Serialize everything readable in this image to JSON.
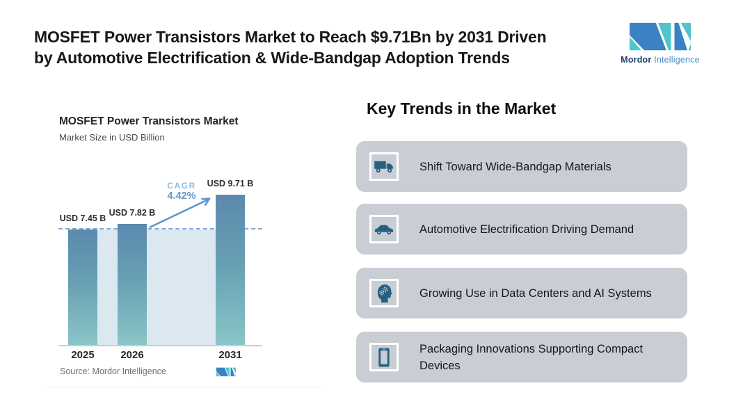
{
  "header": {
    "title_line1": "MOSFET Power Transistors Market to Reach $9.71Bn by 2031 Driven",
    "title_line2": "by Automotive Electrification & Wide-Bandgap Adoption Trends",
    "logo": {
      "brand_bold": "Mordor",
      "brand_light": "Intelligence",
      "blue": "#3b82c4",
      "teal": "#4ec5ca"
    }
  },
  "chart": {
    "title": "MOSFET Power Transistors Market",
    "subtitle": "Market Size in USD Billion",
    "cagr_label": "CAGR",
    "cagr_value": "4.42%",
    "source_label": "Source: Mordor Intelligence"
  },
  "chart_data": {
    "type": "bar",
    "title": "MOSFET Power Transistors Market",
    "subtitle": "Market Size in USD Billion",
    "categories": [
      "2025",
      "2026",
      "2031"
    ],
    "values": [
      7.45,
      7.82,
      9.71
    ],
    "labels": [
      "USD 7.45 B",
      "USD 7.82 B",
      "USD 9.71 B"
    ],
    "cagr_percent": 4.42,
    "ylim": [
      0,
      10
    ],
    "unit": "USD Billion",
    "annotations": [
      "CAGR 4.42% arrow from 2026 to 2031",
      "dashed reference line at 2025 level"
    ],
    "legend": "none",
    "grid": false,
    "bar_color_gradient": [
      "#5b89ae",
      "#8ac5c8"
    ],
    "area_fill_color": "#dce8f0",
    "source": "Source: Mordor Intelligence"
  },
  "trends": {
    "heading": "Key Trends in the Market",
    "card_bg": "#c9ced5",
    "icon_color": "#26607f",
    "items": [
      {
        "icon": "truck-icon",
        "label": "Shift Toward Wide-Bandgap Materials"
      },
      {
        "icon": "car-icon",
        "label": "Automotive Electrification Driving Demand"
      },
      {
        "icon": "ai-head-icon",
        "label": "Growing Use in Data Centers and AI Systems"
      },
      {
        "icon": "smartphone-icon",
        "label": "Packaging Innovations Supporting Compact Devices"
      }
    ]
  }
}
